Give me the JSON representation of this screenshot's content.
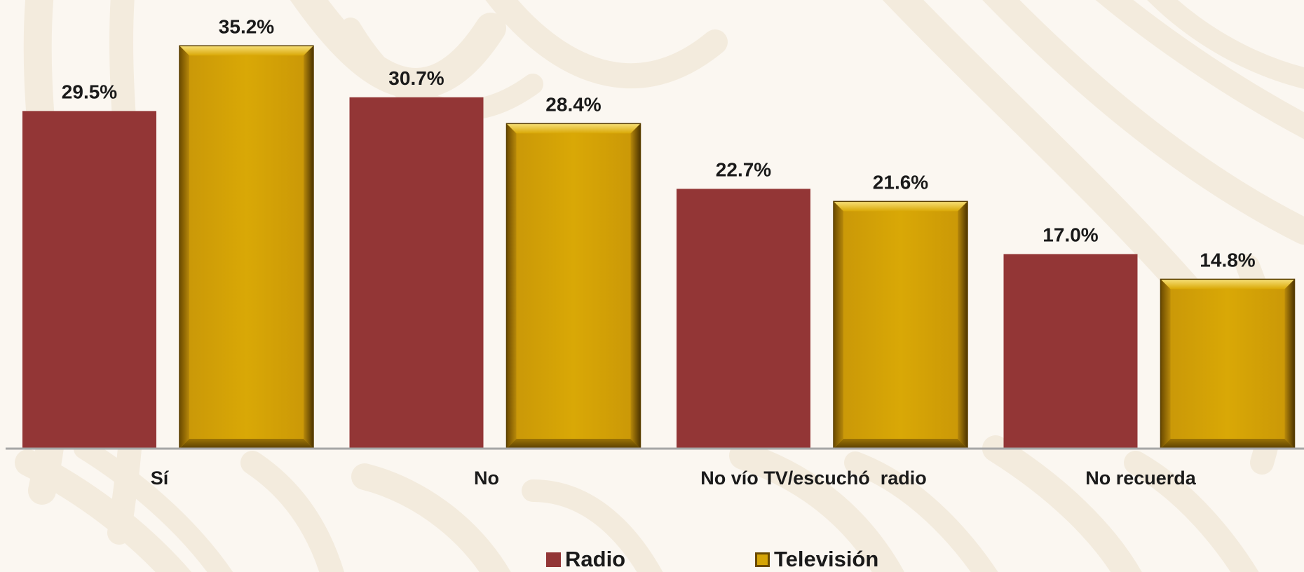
{
  "chart_data": {
    "type": "bar",
    "categories": [
      "Sí",
      "No",
      "No vío TV/escuchó  radio",
      "No recuerda"
    ],
    "series": [
      {
        "name": "Radio",
        "values": [
          29.5,
          30.7,
          22.7,
          17.0
        ],
        "labels": [
          "29.5%",
          "30.7%",
          "22.7%",
          "17.0%"
        ],
        "color": "#933636"
      },
      {
        "name": "Televisión",
        "values": [
          35.2,
          28.4,
          21.6,
          14.8
        ],
        "labels": [
          "35.2%",
          "28.4%",
          "21.6%",
          "14.8%"
        ],
        "color": "#d6a507"
      }
    ],
    "ylim": [
      0,
      39.2
    ],
    "grid": false,
    "legend": "bottom-center",
    "value_format": "percent, one decimal"
  },
  "colors": {
    "background": "#fbf7f1",
    "background_pattern": "#f3ebdd",
    "axis_line": "#a6a6a6",
    "radio": "#933636",
    "television": "#d6a507"
  }
}
